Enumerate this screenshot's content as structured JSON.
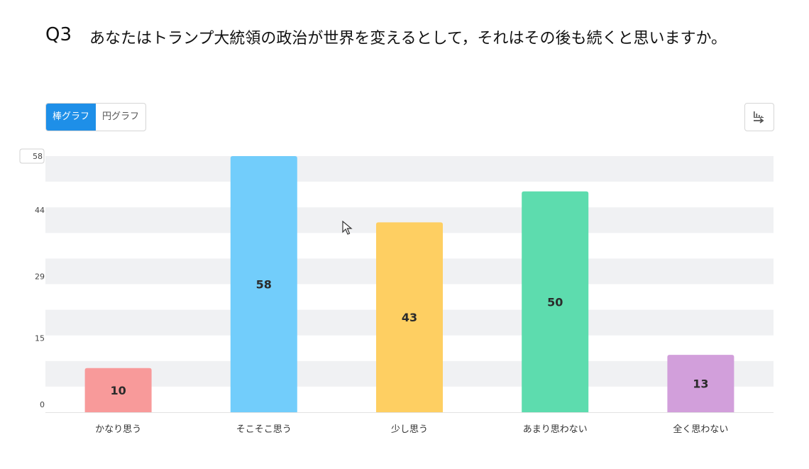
{
  "question": {
    "number": "Q3",
    "text": "あなたはトランプ大統領の政治が世界を変えるとして，それはその後も続くと思いますか。"
  },
  "toggle": {
    "bar_label": "棒グラフ",
    "pie_label": "円グラフ"
  },
  "icons": {
    "export": "bar-chart-export-icon",
    "cursor": "mouse-pointer-icon"
  },
  "colors": {
    "accent": "#1e8fe8",
    "band": "#f0f1f3"
  },
  "chart_data": {
    "type": "bar",
    "categories": [
      "かなり思う",
      "そこそこ思う",
      "少し思う",
      "あまり思わない",
      "全く思わない"
    ],
    "values": [
      10,
      58,
      43,
      50,
      13
    ],
    "colors": [
      "#f89a9a",
      "#72cdfb",
      "#fecf62",
      "#5ddcae",
      "#d29fdb"
    ],
    "title": "",
    "xlabel": "",
    "ylabel": "",
    "ylim": [
      0,
      58
    ],
    "yticks": [
      0,
      15,
      29,
      44,
      58
    ],
    "grid": "alternating horizontal bands",
    "data_labels": true,
    "legend": "none"
  }
}
